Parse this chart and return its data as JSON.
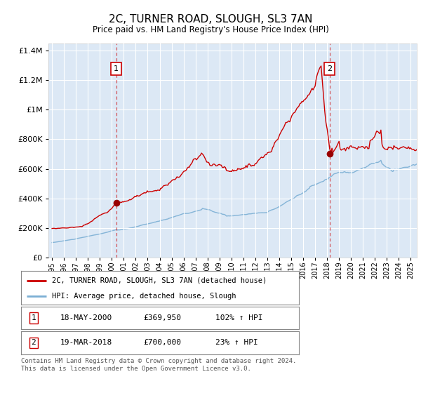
{
  "title": "2C, TURNER ROAD, SLOUGH, SL3 7AN",
  "subtitle": "Price paid vs. HM Land Registry's House Price Index (HPI)",
  "legend_line1": "2C, TURNER ROAD, SLOUGH, SL3 7AN (detached house)",
  "legend_line2": "HPI: Average price, detached house, Slough",
  "footer": "Contains HM Land Registry data © Crown copyright and database right 2024.\nThis data is licensed under the Open Government Licence v3.0.",
  "transaction1_date": "18-MAY-2000",
  "transaction1_price": "£369,950",
  "transaction1_hpi": "102% ↑ HPI",
  "transaction2_date": "19-MAR-2018",
  "transaction2_price": "£700,000",
  "transaction2_hpi": "23% ↑ HPI",
  "transaction1_year": 2000.38,
  "transaction1_value": 369950,
  "transaction2_year": 2018.21,
  "transaction2_value": 700000,
  "property_color": "#cc0000",
  "hpi_color": "#7bafd4",
  "dashed_color": "#cc0000",
  "marker_color": "#cc0000",
  "plot_bg": "#dce8f5",
  "ylim_max": 1450000,
  "yticks": [
    0,
    200000,
    400000,
    600000,
    800000,
    1000000,
    1200000,
    1400000
  ]
}
